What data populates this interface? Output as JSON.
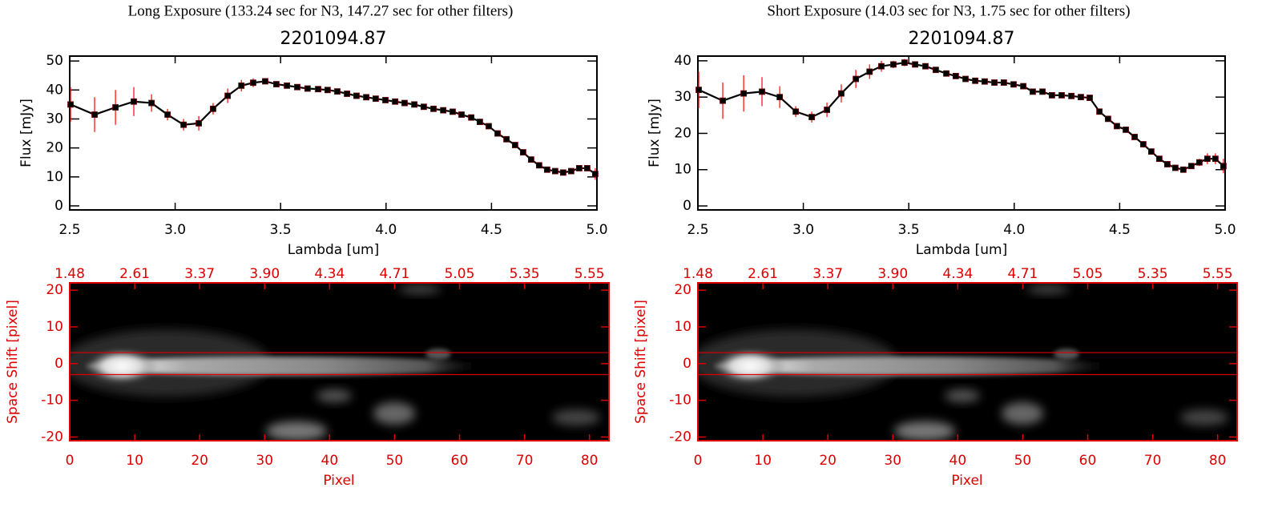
{
  "chart_data": [
    {
      "type": "line",
      "heading": "Long Exposure (133.24 sec for N3, 147.27 sec for other filters)",
      "title": "2201094.87",
      "xlabel": "Lambda [um]",
      "ylabel": "Flux [mJy]",
      "color": "#000000",
      "error_color": "#ff0000",
      "xlim": [
        2.5,
        5.0
      ],
      "ylim": [
        -1.4,
        51.7
      ],
      "xticks": [
        2.5,
        {
          "value": 3,
          "label": "3.0"
        },
        3.5,
        {
          "value": 4,
          "label": "4.0"
        },
        4.5,
        {
          "value": 5,
          "label": "5.0"
        }
      ],
      "yticks": [
        0,
        10,
        20,
        30,
        40,
        50
      ],
      "x": [
        2.504,
        2.618,
        2.717,
        2.804,
        2.888,
        2.964,
        3.04,
        3.112,
        3.18,
        3.249,
        3.314,
        3.37,
        3.427,
        3.48,
        3.53,
        3.579,
        3.628,
        3.678,
        3.723,
        3.769,
        3.815,
        3.86,
        3.906,
        3.951,
        3.997,
        4.043,
        4.088,
        4.134,
        4.179,
        4.225,
        4.271,
        4.316,
        4.358,
        4.404,
        4.445,
        4.487,
        4.529,
        4.571,
        4.612,
        4.65,
        4.688,
        4.726,
        4.764,
        4.802,
        4.84,
        4.878,
        4.916,
        4.954,
        4.992
      ],
      "values": [
        35,
        31.5,
        34,
        36,
        35.5,
        31.5,
        28,
        28.5,
        33.5,
        38,
        41.5,
        42.5,
        43,
        42,
        41.5,
        41,
        40.5,
        40.3,
        40,
        39.5,
        38.7,
        38,
        37.5,
        37,
        36.5,
        36,
        35.5,
        35,
        34.2,
        33.5,
        33,
        32.5,
        31.5,
        30.5,
        29,
        27.5,
        25,
        23,
        21,
        18.5,
        16,
        14,
        12.5,
        12,
        11.5,
        12,
        13,
        13,
        11
      ],
      "errors": [
        6,
        6,
        6,
        5,
        3,
        2,
        2,
        2.5,
        2,
        2.5,
        2,
        1.5,
        1,
        1,
        1,
        0.8,
        0.8,
        0.8,
        0.8,
        0.8,
        0.8,
        0.8,
        0.8,
        0.8,
        0.8,
        0.8,
        0.8,
        0.8,
        0.8,
        0.8,
        0.8,
        0.8,
        0.8,
        0.8,
        0.8,
        0.8,
        0.8,
        0.8,
        0.8,
        0.8,
        0.8,
        0.8,
        0.8,
        0.8,
        0.8,
        0.8,
        1,
        1,
        2
      ]
    },
    {
      "type": "image",
      "xlabel": "Pixel",
      "ylabel": "Space Shift [pixel]",
      "color": "#dd0000",
      "xlim": [
        0,
        83
      ],
      "ylim": [
        -21,
        22
      ],
      "xticks": [
        0,
        10,
        20,
        30,
        40,
        50,
        60,
        70,
        80
      ],
      "yticks": [
        -20,
        -10,
        0,
        10,
        20
      ],
      "x2ticks": [
        1.48,
        2.61,
        3.37,
        {
          "value": 3.9,
          "label": "3.90"
        },
        4.34,
        4.71,
        5.05,
        5.35,
        5.55
      ],
      "hlines": [
        -3,
        3
      ]
    },
    {
      "type": "line",
      "heading": "Short Exposure (14.03 sec for N3, 1.75 sec for other filters)",
      "title": "2201094.87",
      "xlabel": "Lambda [um]",
      "ylabel": "Flux [mJy]",
      "color": "#000000",
      "error_color": "#ff0000",
      "xlim": [
        2.5,
        5.0
      ],
      "ylim": [
        -1.1,
        41.3
      ],
      "xticks": [
        2.5,
        {
          "value": 3,
          "label": "3.0"
        },
        3.5,
        {
          "value": 4,
          "label": "4.0"
        },
        4.5,
        {
          "value": 5,
          "label": "5.0"
        }
      ],
      "yticks": [
        0,
        10,
        20,
        30,
        40
      ],
      "x": [
        2.504,
        2.618,
        2.717,
        2.804,
        2.888,
        2.964,
        3.04,
        3.112,
        3.18,
        3.249,
        3.314,
        3.37,
        3.427,
        3.48,
        3.53,
        3.579,
        3.628,
        3.678,
        3.723,
        3.769,
        3.815,
        3.86,
        3.906,
        3.951,
        3.997,
        4.043,
        4.088,
        4.134,
        4.179,
        4.225,
        4.271,
        4.316,
        4.358,
        4.404,
        4.445,
        4.487,
        4.529,
        4.571,
        4.612,
        4.65,
        4.688,
        4.726,
        4.764,
        4.802,
        4.84,
        4.878,
        4.916,
        4.954,
        4.992
      ],
      "values": [
        32,
        29,
        31,
        31.5,
        30,
        26,
        24.5,
        26.5,
        31,
        35,
        37,
        38.5,
        39,
        39.5,
        39,
        38.5,
        37.5,
        36.5,
        35.8,
        35,
        34.5,
        34.3,
        34,
        34,
        33.5,
        33,
        31.5,
        31.5,
        30.5,
        30.5,
        30.3,
        30,
        29.8,
        26,
        24,
        22,
        21,
        19,
        17,
        15,
        13,
        11.5,
        10.5,
        10,
        11,
        12,
        13,
        13,
        11
      ],
      "errors": [
        5,
        5,
        5,
        4,
        3,
        1.5,
        1.5,
        2,
        2.5,
        2.5,
        2,
        1.5,
        1,
        1,
        0.8,
        0.8,
        0.8,
        0.8,
        0.8,
        0.8,
        0.8,
        0.8,
        0.8,
        0.8,
        0.8,
        0.8,
        0.8,
        0.8,
        0.8,
        0.8,
        0.8,
        0.8,
        0.8,
        0.8,
        0.8,
        0.8,
        0.8,
        0.8,
        0.8,
        0.8,
        0.8,
        0.8,
        0.8,
        0.8,
        0.8,
        1,
        1.5,
        1.5,
        2
      ]
    },
    {
      "type": "image",
      "xlabel": "Pixel",
      "ylabel": "Space Shift [pixel]",
      "color": "#dd0000",
      "xlim": [
        0,
        83
      ],
      "ylim": [
        -21,
        22
      ],
      "xticks": [
        0,
        10,
        20,
        30,
        40,
        50,
        60,
        70,
        80
      ],
      "yticks": [
        -20,
        -10,
        0,
        10,
        20
      ],
      "x2ticks": [
        1.48,
        2.61,
        3.37,
        {
          "value": 3.9,
          "label": "3.90"
        },
        4.34,
        4.71,
        5.05,
        5.35,
        5.55
      ],
      "hlines": [
        -3,
        3
      ]
    }
  ]
}
